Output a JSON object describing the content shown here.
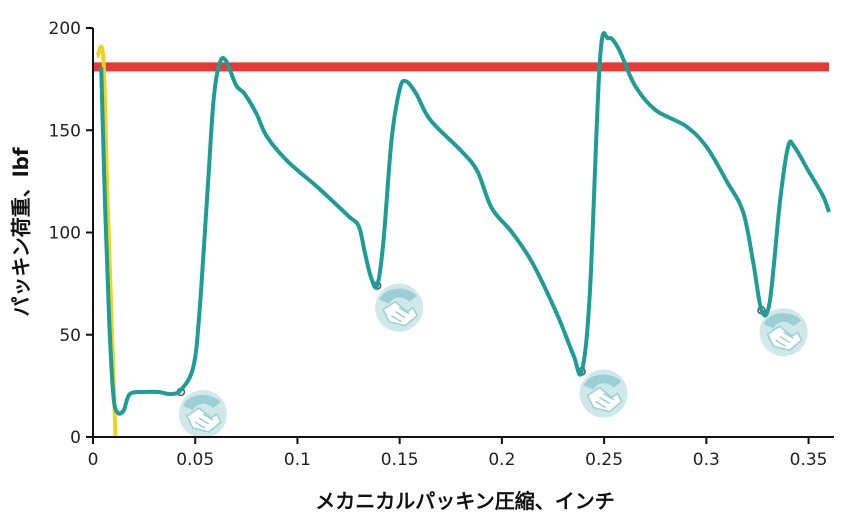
{
  "chart_data": {
    "type": "line",
    "xlabel": "メカニカルパッキン圧縮、インチ",
    "ylabel": "パッキン荷重、lbf",
    "xlim": [
      0,
      0.36
    ],
    "ylim": [
      0,
      200
    ],
    "x_ticks": [
      "0",
      "0.05",
      "0.1",
      "0.15",
      "0.2",
      "0.25",
      "0.3",
      "0.35"
    ],
    "y_ticks": [
      "0",
      "50",
      "100",
      "150",
      "200"
    ],
    "grid": false,
    "legend": "none",
    "series": [
      {
        "color": "#e53935",
        "style": "horizontal-line",
        "points": [
          [
            0.0,
            181
          ],
          [
            0.36,
            181
          ]
        ]
      },
      {
        "color": "#f2d21b",
        "points": [
          [
            0.002,
            186
          ],
          [
            0.005,
            186
          ],
          [
            0.007,
            120
          ],
          [
            0.009,
            60
          ],
          [
            0.011,
            0
          ]
        ]
      },
      {
        "color": "#1e9c96",
        "points": [
          [
            0.004,
            181
          ],
          [
            0.006,
            110
          ],
          [
            0.008,
            55
          ],
          [
            0.01,
            20
          ],
          [
            0.012,
            12
          ],
          [
            0.015,
            13
          ],
          [
            0.018,
            21
          ],
          [
            0.025,
            22
          ],
          [
            0.032,
            22
          ],
          [
            0.038,
            21
          ],
          [
            0.043,
            23
          ],
          [
            0.049,
            34
          ],
          [
            0.052,
            60
          ],
          [
            0.056,
            120
          ],
          [
            0.059,
            165
          ],
          [
            0.062,
            183
          ],
          [
            0.065,
            184
          ],
          [
            0.07,
            172
          ],
          [
            0.074,
            168
          ],
          [
            0.08,
            158
          ],
          [
            0.085,
            147
          ],
          [
            0.095,
            135
          ],
          [
            0.11,
            122
          ],
          [
            0.125,
            108
          ],
          [
            0.13,
            103
          ],
          [
            0.133,
            90
          ],
          [
            0.136,
            78
          ],
          [
            0.139,
            74
          ],
          [
            0.142,
            95
          ],
          [
            0.146,
            145
          ],
          [
            0.15,
            170
          ],
          [
            0.153,
            174
          ],
          [
            0.158,
            168
          ],
          [
            0.165,
            155
          ],
          [
            0.18,
            140
          ],
          [
            0.188,
            130
          ],
          [
            0.195,
            112
          ],
          [
            0.205,
            100
          ],
          [
            0.215,
            85
          ],
          [
            0.227,
            60
          ],
          [
            0.235,
            40
          ],
          [
            0.239,
            32
          ],
          [
            0.243,
            70
          ],
          [
            0.248,
            185
          ],
          [
            0.252,
            195
          ],
          [
            0.257,
            190
          ],
          [
            0.265,
            172
          ],
          [
            0.275,
            160
          ],
          [
            0.29,
            152
          ],
          [
            0.3,
            142
          ],
          [
            0.31,
            125
          ],
          [
            0.318,
            110
          ],
          [
            0.323,
            85
          ],
          [
            0.327,
            62
          ],
          [
            0.331,
            66
          ],
          [
            0.336,
            115
          ],
          [
            0.34,
            142
          ],
          [
            0.343,
            142
          ],
          [
            0.35,
            130
          ],
          [
            0.357,
            118
          ],
          [
            0.36,
            110
          ]
        ]
      }
    ],
    "annotation_icons": [
      {
        "name": "handshake-icon",
        "x": 0.043,
        "y": 22
      },
      {
        "name": "handshake-icon",
        "x": 0.139,
        "y": 74
      },
      {
        "name": "handshake-icon",
        "x": 0.239,
        "y": 32
      },
      {
        "name": "handshake-icon",
        "x": 0.327,
        "y": 62
      }
    ]
  }
}
